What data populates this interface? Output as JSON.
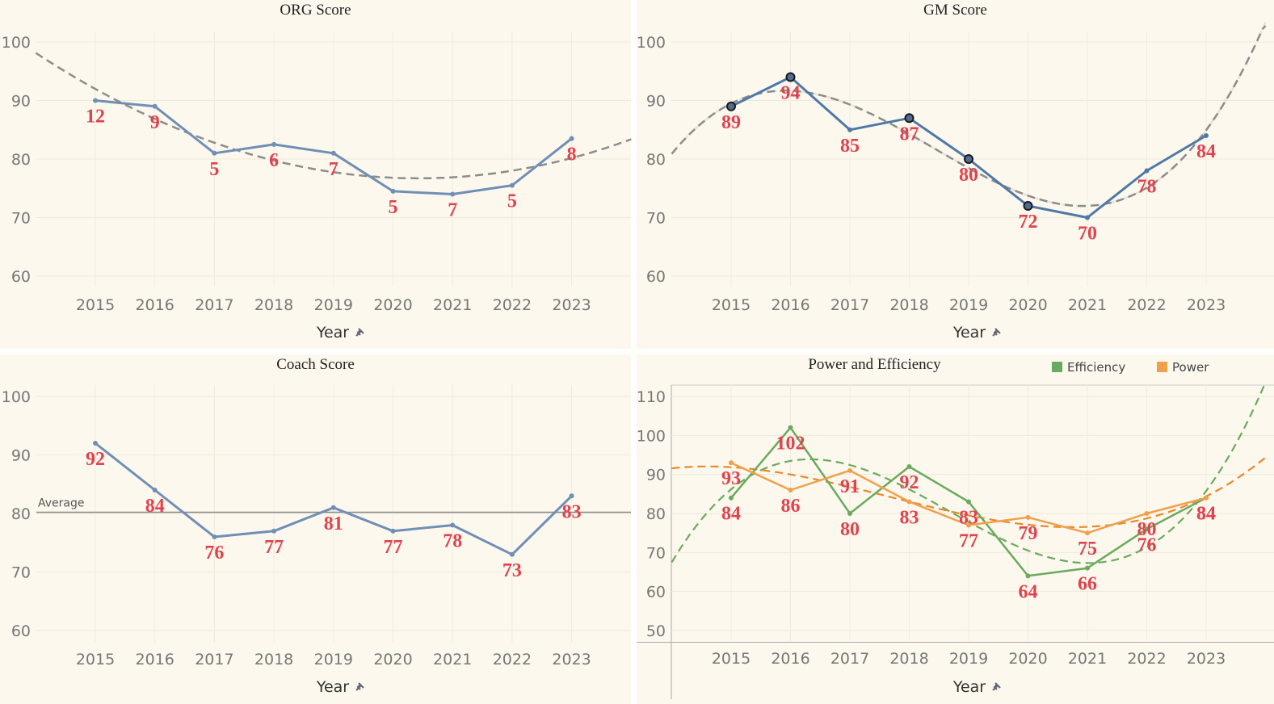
{
  "chart_data": [
    {
      "type": "line",
      "title": "ORG Score",
      "xlabel": "Year",
      "x": [
        2015,
        2016,
        2017,
        2018,
        2019,
        2020,
        2021,
        2022,
        2023
      ],
      "ylim": [
        60,
        100
      ],
      "y_ticks": [
        60,
        70,
        80,
        90,
        100
      ],
      "series": [
        {
          "values": [
            90,
            89,
            81,
            82.5,
            81,
            74.5,
            74,
            75.5,
            83.5
          ],
          "labels": [
            "12",
            "9",
            "5",
            "6",
            "7",
            "5",
            "7",
            "5",
            "8"
          ],
          "color": "#6f8fb5"
        }
      ],
      "trend": {
        "type": "polynomial",
        "color": "#8c8c8c"
      }
    },
    {
      "type": "line",
      "title": "GM Score",
      "xlabel": "Year",
      "x": [
        2015,
        2016,
        2017,
        2018,
        2019,
        2020,
        2021,
        2022,
        2023
      ],
      "ylim": [
        60,
        100
      ],
      "y_ticks": [
        60,
        70,
        80,
        90,
        100
      ],
      "series": [
        {
          "values": [
            89,
            94,
            85,
            87,
            80,
            72,
            70,
            78,
            84
          ],
          "labels": [
            "89",
            "94",
            "85",
            "87",
            "80",
            "72",
            "70",
            "78",
            "84"
          ],
          "color": "#4e79a7"
        }
      ],
      "trend": {
        "type": "polynomial",
        "color": "#8c8c8c"
      }
    },
    {
      "type": "line",
      "title": "Coach Score",
      "xlabel": "Year",
      "x": [
        2015,
        2016,
        2017,
        2018,
        2019,
        2020,
        2021,
        2022,
        2023
      ],
      "ylim": [
        60,
        100
      ],
      "y_ticks": [
        60,
        70,
        80,
        90,
        100
      ],
      "reference_line": {
        "label": "Average",
        "value": 80.2
      },
      "series": [
        {
          "values": [
            92,
            84,
            76,
            77,
            81,
            77,
            78,
            73,
            83
          ],
          "labels": [
            "92",
            "84",
            "76",
            "77",
            "81",
            "77",
            "78",
            "73",
            "83"
          ],
          "color": "#6f8fb5"
        }
      ]
    },
    {
      "type": "line",
      "title": "Power and Efficiency",
      "xlabel": "Year",
      "x": [
        2015,
        2016,
        2017,
        2018,
        2019,
        2020,
        2021,
        2022,
        2023
      ],
      "ylim": [
        50,
        110
      ],
      "y_ticks": [
        50,
        60,
        70,
        80,
        90,
        100,
        110
      ],
      "legend": {
        "position": "top-right"
      },
      "series": [
        {
          "name": "Efficiency",
          "values": [
            84,
            102,
            80,
            92,
            83,
            64,
            66,
            76,
            84
          ],
          "color": "#6aaa5e"
        },
        {
          "name": "Power",
          "values": [
            93,
            86,
            91,
            83,
            77,
            79,
            75,
            80,
            84
          ],
          "color": "#f0a04b"
        }
      ]
    }
  ]
}
